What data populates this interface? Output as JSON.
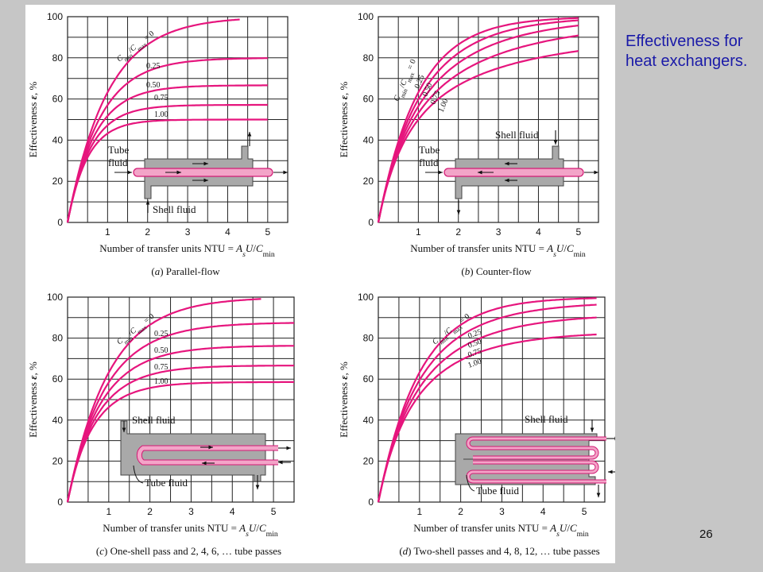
{
  "side_caption": "Effectiveness for heat exchangers.",
  "slide_number": "26",
  "colors": {
    "curve": "#e6157d",
    "grid": "#222222",
    "shell": "#a9a9a9",
    "tube": "#f3a4c8",
    "tube_stroke": "#d21a74"
  },
  "chart_data": [
    {
      "type": "line",
      "caption": "(a) Parallel-flow",
      "xlabel": "Number of transfer units NTU = AsU/Cmin",
      "ylabel": "Effectiveness ε, %",
      "xlim": [
        0,
        5.5
      ],
      "ylim": [
        0,
        100
      ],
      "xticks": [
        1,
        2,
        3,
        4,
        5
      ],
      "yticks": [
        0,
        20,
        40,
        60,
        80,
        100
      ],
      "grid": true,
      "ratio_title": "Cmin/Cmax = 0",
      "diagram_labels": [
        "Tube fluid",
        "Shell fluid"
      ],
      "series": [
        {
          "name": "0",
          "x_end": 4.3
        },
        {
          "name": "0.25",
          "x_end": 5.0
        },
        {
          "name": "0.50",
          "x_end": 5.0
        },
        {
          "name": "0.75",
          "x_end": 5.0
        },
        {
          "name": "1.00",
          "x_end": 5.0
        }
      ]
    },
    {
      "type": "line",
      "caption": "(b) Counter-flow",
      "xlabel": "Number of transfer units NTU = AsU/Cmin",
      "ylabel": "Effectiveness ε, %",
      "xlim": [
        0,
        5.5
      ],
      "ylim": [
        0,
        100
      ],
      "xticks": [
        1,
        2,
        3,
        4,
        5
      ],
      "yticks": [
        0,
        20,
        40,
        60,
        80,
        100
      ],
      "grid": true,
      "ratio_title": "Cmin/Cmax = 0",
      "diagram_labels": [
        "Shell fluid",
        "Tube fluid"
      ],
      "series": [
        {
          "name": "0",
          "x_end": 5.0
        },
        {
          "name": "0.25",
          "x_end": 5.0
        },
        {
          "name": "0.50",
          "x_end": 5.0
        },
        {
          "name": "0.75",
          "x_end": 5.0
        },
        {
          "name": "1.00",
          "x_end": 5.0
        }
      ]
    },
    {
      "type": "line",
      "caption": "(c) One-shell pass and 2, 4, 6, … tube passes",
      "xlabel": "Number of transfer units NTU = AsU/Cmin",
      "ylabel": "Effectiveness ε, %",
      "xlim": [
        0,
        5.5
      ],
      "ylim": [
        0,
        100
      ],
      "xticks": [
        1,
        2,
        3,
        4,
        5
      ],
      "yticks": [
        0,
        20,
        40,
        60,
        80,
        100
      ],
      "grid": true,
      "ratio_title": "Cmin/Cmax = 0",
      "diagram_labels": [
        "Shell fluid",
        "Tube fluid"
      ],
      "series": [
        {
          "name": "0",
          "x_end": 4.7
        },
        {
          "name": "0.25",
          "x_end": 5.5
        },
        {
          "name": "0.50",
          "x_end": 5.5
        },
        {
          "name": "0.75",
          "x_end": 5.5
        },
        {
          "name": "1.00",
          "x_end": 5.5
        }
      ]
    },
    {
      "type": "line",
      "caption": "(d) Two-shell passes and 4, 8, 12, … tube passes",
      "xlabel": "Number of transfer units NTU = AsU/Cmin",
      "ylabel": "Effectiveness ε, %",
      "xlim": [
        0,
        5.5
      ],
      "ylim": [
        0,
        100
      ],
      "xticks": [
        1,
        2,
        3,
        4,
        5
      ],
      "yticks": [
        0,
        20,
        40,
        60,
        80,
        100
      ],
      "grid": true,
      "ratio_title": "Cmin/Cmax = 0",
      "diagram_labels": [
        "Shell fluid",
        "Tube fluid"
      ],
      "series": [
        {
          "name": "0",
          "x_end": 5.3
        },
        {
          "name": "0.25",
          "x_end": 5.3
        },
        {
          "name": "0.50",
          "x_end": 5.3
        },
        {
          "name": "0.75",
          "x_end": 5.3
        },
        {
          "name": "1.00",
          "x_end": 5.3
        }
      ]
    }
  ]
}
